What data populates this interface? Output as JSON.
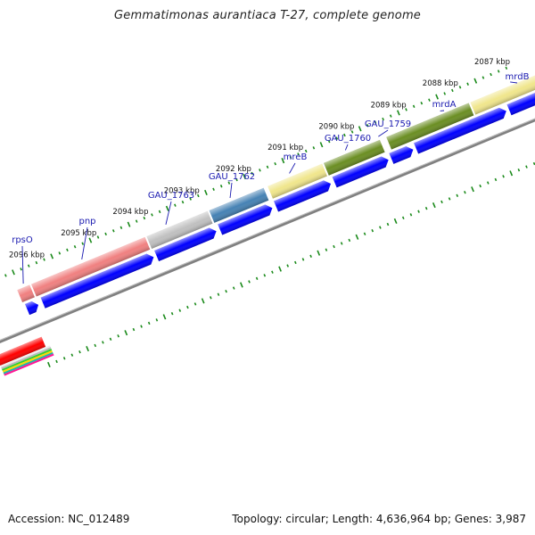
{
  "title": "Gemmatimonas aurantiaca T-27, complete genome",
  "footer": {
    "accession": "Accession: NC_012489",
    "summary": "Topology: circular; Length: 4,636,964 bp; Genes: 3,987"
  },
  "colors": {
    "cds": "#0000ff",
    "backbone": "#808080",
    "tick": "#1a8a1a",
    "label": "#1a1ab0"
  },
  "kbp_labels": [
    "2096 kbp",
    "2095 kbp",
    "2094 kbp",
    "2093 kbp",
    "2092 kbp",
    "2091 kbp",
    "2090 kbp",
    "2089 kbp",
    "2088 kbp",
    "2087 kbp"
  ],
  "gene_labels": [
    "rpsO",
    "pnp",
    "GAU_1763",
    "GAU_1762",
    "mreB",
    "GAU_1760",
    "GAU_1759",
    "mrdA",
    "mrdB"
  ],
  "feature_colors": [
    "#f08080",
    "#f08080",
    "#c0c0c0",
    "#4682b4",
    "#f0e68c",
    "#6b8e23",
    "#6b8e23",
    "#f0e68c"
  ]
}
